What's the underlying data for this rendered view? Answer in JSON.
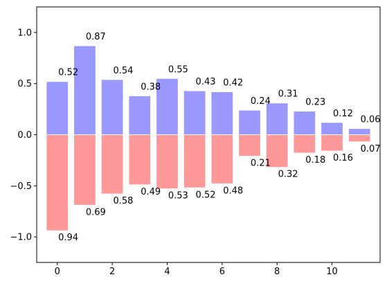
{
  "chart_data": {
    "type": "bar",
    "x": [
      0,
      1,
      2,
      3,
      4,
      5,
      6,
      7,
      8,
      9,
      10,
      11
    ],
    "series": [
      {
        "color": "#9999ff",
        "values": [
          0.52,
          0.87,
          0.54,
          0.38,
          0.55,
          0.43,
          0.42,
          0.24,
          0.31,
          0.23,
          0.12,
          0.06
        ],
        "labels": [
          "0.52",
          "0.87",
          "0.54",
          "0.38",
          "0.55",
          "0.43",
          "0.42",
          "0.24",
          "0.31",
          "0.23",
          "0.12",
          "0.06"
        ]
      },
      {
        "color": "#ff9999",
        "values": [
          -0.94,
          -0.69,
          -0.58,
          -0.49,
          -0.53,
          -0.52,
          -0.48,
          -0.21,
          -0.32,
          -0.18,
          -0.16,
          -0.07
        ],
        "labels": [
          "0.94",
          "0.69",
          "0.58",
          "0.49",
          "0.53",
          "0.52",
          "0.48",
          "0.21",
          "0.32",
          "0.18",
          "0.16",
          "0.07"
        ]
      }
    ],
    "xlim": [
      -0.75,
      11.75
    ],
    "ylim": [
      -1.25,
      1.25
    ],
    "xticks": [
      0,
      2,
      4,
      6,
      8,
      10
    ],
    "xtick_labels": [
      "0",
      "2",
      "4",
      "6",
      "8",
      "10"
    ],
    "yticks": [
      -1.0,
      -0.5,
      0.0,
      0.5,
      1.0
    ],
    "ytick_labels": [
      "−1.0",
      "−0.5",
      "0.0",
      "0.5",
      "1.0"
    ],
    "bar_edge_color": "#ffffff",
    "grid": false,
    "legend": "none"
  }
}
